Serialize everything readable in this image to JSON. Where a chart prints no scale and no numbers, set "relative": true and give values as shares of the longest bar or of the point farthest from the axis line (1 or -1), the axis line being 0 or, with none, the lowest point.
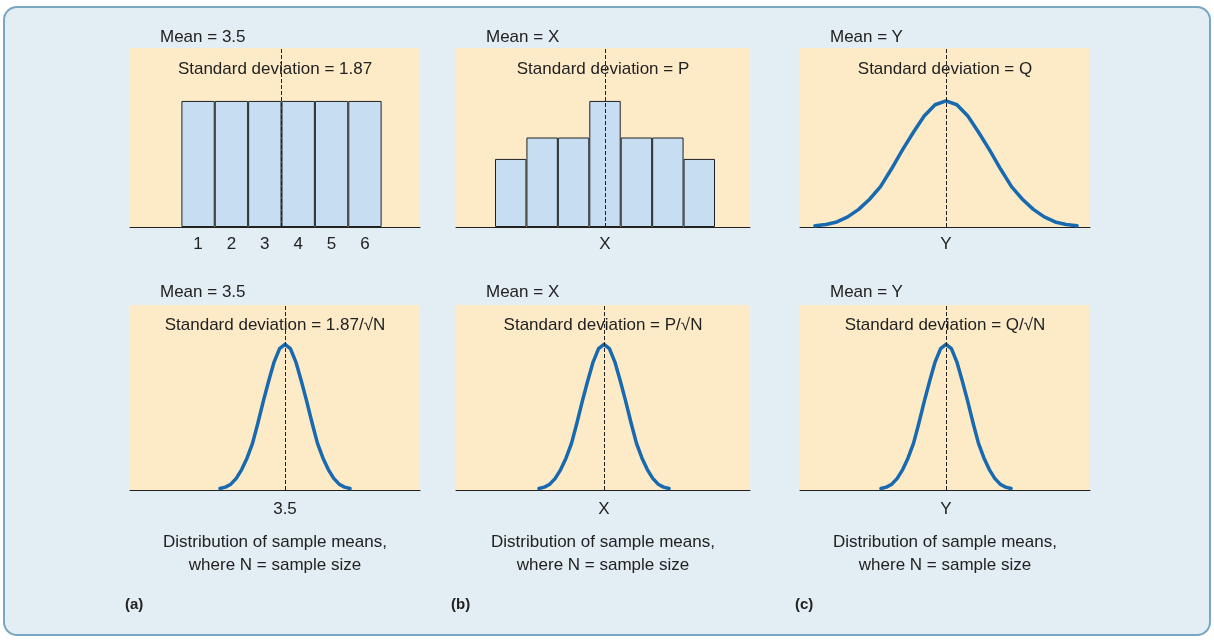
{
  "chart_data": [
    {
      "type": "bar",
      "title": "Mean = 3.5",
      "subtitle": "Standard deviation = 1.87",
      "relative": true,
      "color": "#c6ddf2",
      "x": [
        1,
        2,
        3,
        4,
        5,
        6
      ],
      "values": [
        1,
        1,
        1,
        1,
        1,
        1
      ],
      "xlim": [
        -1.04,
        7.65
      ],
      "xticks": [
        1,
        2,
        3,
        4,
        5,
        6
      ],
      "ref_lines": [
        {
          "axis": "x",
          "value": 3.5,
          "line_style": "dashed"
        }
      ]
    },
    {
      "type": "bar",
      "title": "Mean = X",
      "subtitle": "Standard deviation = P",
      "annotations": [
        "X"
      ],
      "relative": true,
      "color": "#c6ddf2",
      "categories": [
        null,
        null,
        null,
        null,
        null,
        null,
        null
      ],
      "values": [
        0.54,
        0.71,
        0.71,
        1,
        0.71,
        0.71,
        0.54
      ]
    },
    {
      "type": "line",
      "title": "Mean = Y",
      "subtitle": "Standard deviation = Q",
      "annotations": [
        "Y"
      ],
      "relative": true,
      "color": "#1769b0",
      "categories": [
        null,
        null,
        null,
        null,
        null,
        null,
        null,
        null,
        null,
        null,
        null,
        null,
        null,
        null,
        null,
        null,
        null,
        null,
        null,
        null,
        null,
        null,
        null,
        null,
        null
      ],
      "values": [
        0.01,
        0.02,
        0.04,
        0.08,
        0.14,
        0.22,
        0.32,
        0.46,
        0.61,
        0.75,
        0.88,
        0.97,
        1,
        0.97,
        0.88,
        0.75,
        0.61,
        0.46,
        0.32,
        0.22,
        0.14,
        0.08,
        0.04,
        0.02,
        0.01
      ]
    },
    {
      "type": "line",
      "title": "Mean = 3.5",
      "subtitle": "Standard deviation = 1.87/√N",
      "xlabel": "Distribution of sample means,\nwhere N = sample size",
      "annotations": [
        "3.5",
        "(a)"
      ],
      "relative": true,
      "color": "#1769b0",
      "categories": [
        null,
        null,
        null,
        null,
        null,
        null,
        null,
        null,
        null,
        null,
        null,
        null,
        null,
        null,
        null,
        null,
        null,
        null,
        null,
        null,
        null,
        null,
        null,
        null,
        null
      ],
      "values": [
        0.01,
        0.02,
        0.04,
        0.08,
        0.14,
        0.22,
        0.32,
        0.46,
        0.61,
        0.75,
        0.88,
        0.97,
        1,
        0.97,
        0.88,
        0.75,
        0.61,
        0.46,
        0.32,
        0.22,
        0.14,
        0.08,
        0.04,
        0.02,
        0.01
      ]
    },
    {
      "type": "line",
      "title": "Mean = X",
      "subtitle": "Standard deviation = P/√N",
      "xlabel": "Distribution of sample means,\nwhere N = sample size",
      "annotations": [
        "X",
        "(b)"
      ],
      "relative": true,
      "color": "#1769b0",
      "categories": [
        null,
        null,
        null,
        null,
        null,
        null,
        null,
        null,
        null,
        null,
        null,
        null,
        null,
        null,
        null,
        null,
        null,
        null,
        null,
        null,
        null,
        null,
        null,
        null,
        null
      ],
      "values": [
        0.01,
        0.02,
        0.04,
        0.08,
        0.14,
        0.22,
        0.32,
        0.46,
        0.61,
        0.75,
        0.88,
        0.97,
        1,
        0.97,
        0.88,
        0.75,
        0.61,
        0.46,
        0.32,
        0.22,
        0.14,
        0.08,
        0.04,
        0.02,
        0.01
      ]
    },
    {
      "type": "line",
      "title": "Mean = Y",
      "subtitle": "Standard deviation = Q/√N",
      "xlabel": "Distribution of sample means,\nwhere N = sample size",
      "annotations": [
        "Y",
        "(c)"
      ],
      "relative": true,
      "color": "#1769b0",
      "categories": [
        null,
        null,
        null,
        null,
        null,
        null,
        null,
        null,
        null,
        null,
        null,
        null,
        null,
        null,
        null,
        null,
        null,
        null,
        null,
        null,
        null,
        null,
        null,
        null,
        null
      ],
      "values": [
        0.01,
        0.02,
        0.04,
        0.08,
        0.14,
        0.22,
        0.32,
        0.46,
        0.61,
        0.75,
        0.88,
        0.97,
        1,
        0.97,
        0.88,
        0.75,
        0.61,
        0.46,
        0.32,
        0.22,
        0.14,
        0.08,
        0.04,
        0.02,
        0.01
      ]
    }
  ]
}
